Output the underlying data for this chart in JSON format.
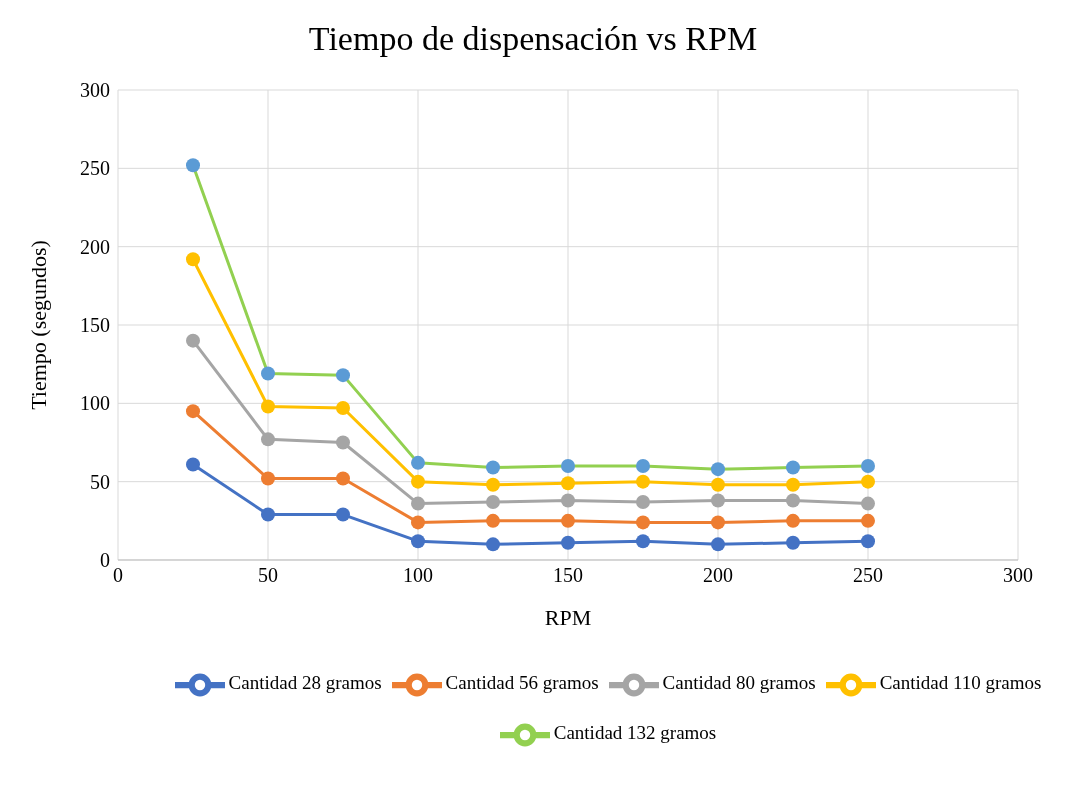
{
  "chart_data": {
    "type": "line",
    "title": "Tiempo de dispensación vs RPM",
    "xlabel": "RPM",
    "ylabel": "Tiempo (segundos)",
    "x": [
      25,
      50,
      75,
      100,
      125,
      150,
      175,
      200,
      225,
      250
    ],
    "series": [
      {
        "name": "Cantidad 28 gramos",
        "color": "#4472c4",
        "values": [
          61,
          29,
          29,
          12,
          10,
          11,
          12,
          10,
          11,
          12
        ]
      },
      {
        "name": "Cantidad 56 gramos",
        "color": "#ed7d31",
        "values": [
          95,
          52,
          52,
          24,
          25,
          25,
          24,
          24,
          25,
          25
        ]
      },
      {
        "name": "Cantidad 80 gramos",
        "color": "#a5a5a5",
        "values": [
          140,
          77,
          75,
          36,
          37,
          38,
          37,
          38,
          38,
          36
        ]
      },
      {
        "name": "Cantidad 110 gramos",
        "color": "#ffc000",
        "values": [
          192,
          98,
          97,
          50,
          48,
          49,
          50,
          48,
          48,
          50
        ]
      },
      {
        "name": "Cantidad 132 gramos",
        "color": "#92d050",
        "colors": [
          "#5b9bd5",
          "#5b9bd5",
          "#5b9bd5",
          "#5b9bd5",
          "#5b9bd5",
          "#5b9bd5",
          "#5b9bd5",
          "#5b9bd5",
          "#5b9bd5",
          "#5b9bd5"
        ],
        "values": [
          252,
          119,
          118,
          62,
          59,
          60,
          60,
          58,
          59,
          60
        ]
      }
    ],
    "xlim": [
      0,
      300
    ],
    "xticks": [
      0,
      50,
      100,
      150,
      200,
      250,
      300
    ],
    "ylim": [
      0,
      300
    ],
    "yticks": [
      0,
      50,
      100,
      150,
      200,
      250,
      300
    ],
    "grid": true,
    "legend": "bottom",
    "marker": "circle",
    "line_style": "solid"
  }
}
